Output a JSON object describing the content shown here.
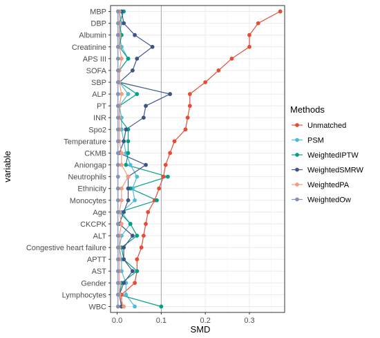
{
  "chart_data": {
    "type": "line",
    "orientation": "horizontal",
    "xlabel": "SMD",
    "ylabel": "variable",
    "xlim": [
      -0.015,
      0.38
    ],
    "xticks": [
      0.0,
      0.1,
      0.2,
      0.3
    ],
    "xtick_labels": [
      "0.0",
      "0.1",
      "0.2",
      "0.3"
    ],
    "reference_line": 0.1,
    "grid": true,
    "legend_position": "right",
    "legend_title": "Methods",
    "categories": [
      "MBP",
      "DBP",
      "Albumin",
      "Creatinine",
      "APS III",
      "SOFA",
      "SBP",
      "ALP",
      "PT",
      "INR",
      "Spo2",
      "Temperature",
      "CKMB",
      "Aniongap",
      "Neutrophils",
      "Ethnicity",
      "Monocytes",
      "Age",
      "CKCPK",
      "ALT",
      "Congestive heart failure",
      "APTT",
      "AST",
      "Gender",
      "Lymphocytes",
      "WBC"
    ],
    "series": [
      {
        "name": "Unmatched",
        "color": "#E64B35",
        "values": [
          0.37,
          0.32,
          0.3,
          0.3,
          0.26,
          0.23,
          0.2,
          0.165,
          0.165,
          0.16,
          0.155,
          0.13,
          0.12,
          0.11,
          0.105,
          0.095,
          0.085,
          0.07,
          0.065,
          0.06,
          0.055,
          0.045,
          0.045,
          0.04,
          0.01,
          0.01
        ]
      },
      {
        "name": "PSM",
        "color": "#4DBBD5",
        "values": [
          0.005,
          0.01,
          0.005,
          0.01,
          0.025,
          0.005,
          0.005,
          0.025,
          0.005,
          0.01,
          0.01,
          0.015,
          0.02,
          0.03,
          0.045,
          0.035,
          0.04,
          0.01,
          0.03,
          0.01,
          0.005,
          0.01,
          0.01,
          0.02,
          0.02,
          0.04
        ]
      },
      {
        "name": "WeightedIPTW",
        "color": "#00A087",
        "values": [
          0.015,
          0.005,
          0.01,
          0.005,
          0.025,
          0.005,
          0.005,
          0.045,
          0.005,
          0.005,
          0.025,
          0.025,
          0.025,
          0.02,
          0.115,
          0.03,
          0.09,
          0.005,
          0.03,
          0.045,
          0.01,
          0.015,
          0.045,
          0.01,
          0.005,
          0.1
        ]
      },
      {
        "name": "WeightedSMRW",
        "color": "#3C5488",
        "values": [
          0.01,
          0.015,
          0.04,
          0.08,
          0.045,
          0.035,
          0.005,
          0.12,
          0.065,
          0.06,
          0.02,
          0.015,
          0.005,
          0.065,
          0.025,
          0.025,
          0.025,
          0.015,
          0.005,
          0.035,
          0.015,
          0.015,
          0.035,
          0.015,
          0.005,
          0.01
        ]
      },
      {
        "name": "WeightedPA",
        "color": "#F39B7F",
        "values": [
          0.005,
          0.005,
          0.005,
          0.005,
          0.01,
          0.005,
          0.005,
          0.01,
          0.005,
          0.005,
          0.005,
          0.005,
          0.01,
          0.01,
          0.025,
          0.01,
          0.01,
          0.005,
          0.01,
          0.005,
          0.005,
          0.005,
          0.005,
          0.005,
          0.005,
          0.015
        ]
      },
      {
        "name": "WeightedOw",
        "color": "#8491B4",
        "values": [
          0.002,
          0.002,
          0.002,
          0.002,
          0.002,
          0.002,
          0.002,
          0.002,
          0.002,
          0.002,
          0.002,
          0.002,
          0.002,
          0.002,
          0.002,
          0.002,
          0.002,
          0.002,
          0.002,
          0.002,
          0.002,
          0.002,
          0.002,
          0.002,
          0.002,
          0.002
        ]
      }
    ]
  }
}
